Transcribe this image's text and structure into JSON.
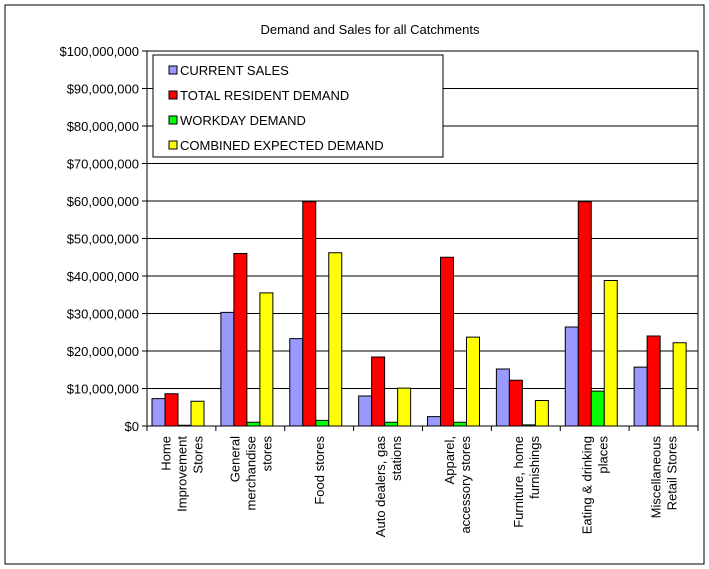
{
  "chart_data": {
    "type": "bar",
    "title": "Demand and Sales for all Catchments",
    "xlabel": "",
    "ylabel": "",
    "ylim": [
      0,
      100000000
    ],
    "y_ticks": [
      "$0",
      "$10,000,000",
      "$20,000,000",
      "$30,000,000",
      "$40,000,000",
      "$50,000,000",
      "$60,000,000",
      "$70,000,000",
      "$80,000,000",
      "$90,000,000",
      "$100,000,000"
    ],
    "grid": true,
    "legend_position": "top-left",
    "categories": [
      [
        "Home",
        "Improvement",
        "Stores"
      ],
      [
        "General",
        "merchandise",
        "stores"
      ],
      [
        "Food stores"
      ],
      [
        "Auto dealers, gas",
        "stations"
      ],
      [
        "Apparel,",
        "accessory stores"
      ],
      [
        "Furniture, home",
        "furnishings"
      ],
      [
        "Eating & drinking",
        "places"
      ],
      [
        "Miscellaneous",
        "Retail Stores"
      ]
    ],
    "series": [
      {
        "name": "CURRENT SALES",
        "color": "#9999ff",
        "values": [
          7300000,
          30300000,
          23300000,
          8000000,
          2500000,
          15200000,
          26400000,
          15700000
        ]
      },
      {
        "name": "TOTAL RESIDENT DEMAND",
        "color": "#ff0000",
        "values": [
          8600000,
          46000000,
          59800000,
          18400000,
          45000000,
          12200000,
          59800000,
          24000000
        ]
      },
      {
        "name": "WORKDAY DEMAND",
        "color": "#00ff00",
        "values": [
          200000,
          1000000,
          1500000,
          1000000,
          1000000,
          300000,
          9300000,
          0
        ]
      },
      {
        "name": "COMBINED EXPECTED DEMAND",
        "color": "#ffff00",
        "values": [
          6600000,
          35500000,
          46200000,
          10100000,
          23700000,
          6800000,
          38800000,
          22200000
        ]
      }
    ]
  }
}
